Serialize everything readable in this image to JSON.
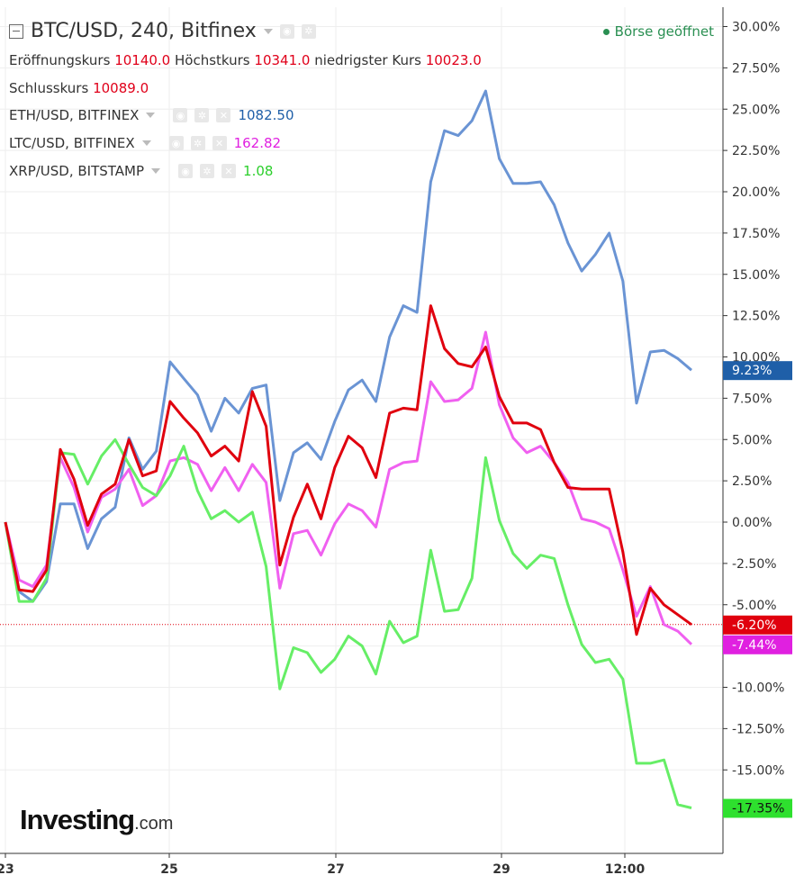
{
  "header": {
    "symbol_title": "BTC/USD, 240, Bitfinex",
    "market_status": "Börse geöffnet",
    "ohlc": [
      {
        "label": "Eröffnungskurs",
        "value": "10140.0"
      },
      {
        "label": "Höchstkurs",
        "value": "10341.0"
      },
      {
        "label": "niedrigster Kurs",
        "value": "10023.0"
      },
      {
        "label": "Schlusskurs",
        "value": "10089.0"
      }
    ],
    "comparisons": [
      {
        "name": "ETH/USD, BITFINEX",
        "value": "1082.50",
        "color": "#1f5fa8"
      },
      {
        "name": "LTC/USD, BITFINEX",
        "value": "162.82",
        "color": "#e020e0"
      },
      {
        "name": "XRP/USD, BITSTAMP",
        "value": "1.08",
        "color": "#2ee02e"
      }
    ]
  },
  "logo": {
    "brand": "Investing",
    "suffix": ".com"
  },
  "chart_data": {
    "type": "line",
    "x_tick_labels": [
      "23",
      "25",
      "27",
      "29",
      "12:00"
    ],
    "y_tick_labels": [
      "30.00%",
      "27.50%",
      "25.00%",
      "22.50%",
      "20.00%",
      "17.50%",
      "15.00%",
      "12.50%",
      "10.00%",
      "7.50%",
      "5.00%",
      "2.50%",
      "0.00%",
      "-2.50%",
      "-5.00%",
      "-7.50%",
      "-10.00%",
      "-12.50%",
      "-15.00%"
    ],
    "ylim": [
      -20,
      31
    ],
    "x_unit": "4-hour bars from 23rd",
    "grid": true,
    "series": [
      {
        "name": "ETH/USD, BITFINEX",
        "color": "#6a94d4",
        "last_label": "9.23%",
        "label_bg": "#1f5fa8",
        "values": [
          0.0,
          -4.2,
          -4.8,
          -3.6,
          1.1,
          1.1,
          -1.6,
          0.2,
          0.9,
          5.1,
          3.2,
          4.3,
          9.7,
          8.7,
          7.7,
          5.5,
          7.5,
          6.6,
          8.1,
          8.3,
          1.3,
          4.2,
          4.8,
          3.8,
          6.1,
          8.0,
          8.6,
          7.3,
          11.2,
          13.1,
          12.7,
          20.6,
          23.7,
          23.4,
          24.3,
          26.1,
          22.0,
          20.5,
          20.5,
          20.6,
          19.2,
          16.9,
          15.2,
          16.2,
          17.5,
          14.6,
          7.2,
          10.3,
          10.4,
          9.9,
          9.2
        ]
      },
      {
        "name": "LTC/USD, BITFINEX",
        "color": "#f060f0",
        "last_label": "-7.44%",
        "label_bg": "#e020e0",
        "values": [
          0.0,
          -3.5,
          -3.9,
          -2.6,
          3.9,
          2.1,
          -0.6,
          1.5,
          2.0,
          3.2,
          1.0,
          1.6,
          3.7,
          3.9,
          3.5,
          1.9,
          3.3,
          1.9,
          3.5,
          2.4,
          -4.0,
          -0.7,
          -0.5,
          -2.0,
          -0.1,
          1.1,
          0.7,
          -0.3,
          3.2,
          3.6,
          3.7,
          8.5,
          7.3,
          7.4,
          8.1,
          11.5,
          7.1,
          5.1,
          4.2,
          4.6,
          3.6,
          2.4,
          0.2,
          0.0,
          -0.4,
          -2.9,
          -5.7,
          -3.9,
          -6.2,
          -6.6,
          -7.4
        ]
      },
      {
        "name": "XRP/USD, BITSTAMP",
        "color": "#66ee66",
        "last_label": "-17.35%",
        "label_bg": "#2ee02e",
        "values": [
          0.0,
          -4.8,
          -4.8,
          -3.4,
          4.2,
          4.1,
          2.3,
          4.0,
          5.0,
          3.5,
          2.1,
          1.6,
          2.8,
          4.6,
          1.9,
          0.2,
          0.7,
          0.0,
          0.6,
          -2.7,
          -10.1,
          -7.6,
          -7.9,
          -9.1,
          -8.3,
          -6.9,
          -7.5,
          -9.2,
          -6.0,
          -7.3,
          -6.9,
          -1.7,
          -5.4,
          -5.3,
          -3.4,
          3.9,
          0.1,
          -1.9,
          -2.8,
          -2.0,
          -2.2,
          -5.0,
          -7.4,
          -8.5,
          -8.3,
          -9.5,
          -14.6,
          -14.6,
          -14.4,
          -17.1,
          -17.3
        ]
      },
      {
        "name": "BTC/USD, 240, Bitfinex",
        "color": "#e0000e",
        "last_label": "-6.20%",
        "label_bg": "#e0000e",
        "values": [
          0.0,
          -4.1,
          -4.2,
          -2.9,
          4.4,
          2.6,
          -0.2,
          1.7,
          2.3,
          5.0,
          2.8,
          3.1,
          7.3,
          6.3,
          5.4,
          4.0,
          4.6,
          3.7,
          7.9,
          5.8,
          -2.6,
          0.3,
          2.3,
          0.2,
          3.3,
          5.2,
          4.5,
          2.7,
          6.6,
          6.9,
          6.8,
          13.1,
          10.5,
          9.6,
          9.4,
          10.6,
          7.6,
          6.0,
          6.0,
          5.6,
          3.6,
          2.1,
          2.0,
          2.0,
          2.0,
          -1.8,
          -6.8,
          -4.0,
          -5.0,
          -5.6,
          -6.2
        ]
      }
    ]
  }
}
